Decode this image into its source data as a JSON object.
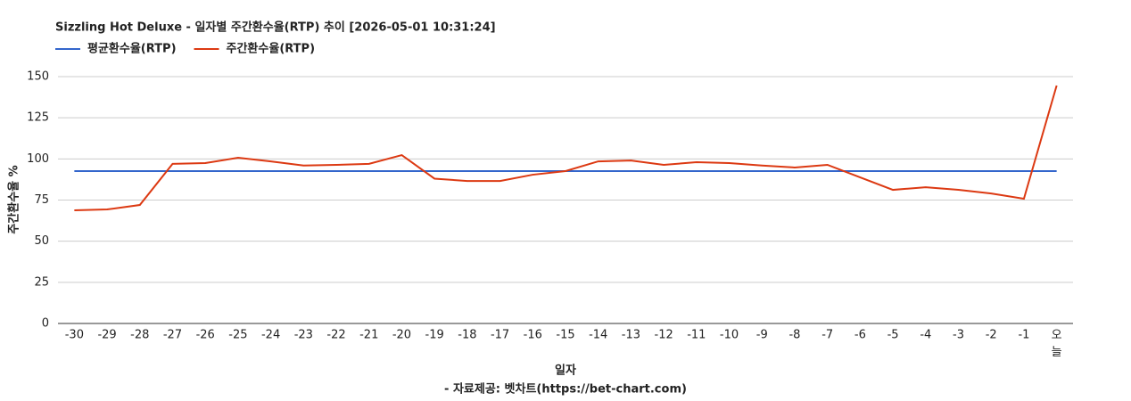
{
  "chart_data": {
    "type": "line",
    "title": "Sizzling Hot Deluxe - 일자별 주간환수율(RTP) 추이 [2026-05-01 10:31:24]",
    "subtitle": "- 자료제공: 벳차트(https://bet-chart.com)",
    "x_label": "일자",
    "y_label": "주간환수율 %",
    "categories": [
      "-30",
      "-29",
      "-28",
      "-27",
      "-26",
      "-25",
      "-24",
      "-23",
      "-22",
      "-21",
      "-20",
      "-19",
      "-18",
      "-17",
      "-16",
      "-15",
      "-14",
      "-13",
      "-12",
      "-11",
      "-10",
      "-9",
      "-8",
      "-7",
      "-6",
      "-5",
      "-4",
      "-3",
      "-2",
      "-1",
      "오늘"
    ],
    "series": [
      {
        "name": "평균환수율(RTP)",
        "color": "#3366cc",
        "values": [
          92.6,
          92.6,
          92.6,
          92.6,
          92.6,
          92.6,
          92.6,
          92.6,
          92.6,
          92.6,
          92.6,
          92.6,
          92.6,
          92.6,
          92.6,
          92.6,
          92.6,
          92.6,
          92.6,
          92.6,
          92.6,
          92.6,
          92.6,
          92.6,
          92.6,
          92.6,
          92.6,
          92.6,
          92.6,
          92.6,
          92.6
        ]
      },
      {
        "name": "주간환수율(RTP)",
        "color": "#dc3912",
        "values": [
          68.8,
          69.3,
          72,
          97,
          97.5,
          100.7,
          98.5,
          96,
          96.4,
          97,
          102.3,
          88,
          86.6,
          86.6,
          90.4,
          92.6,
          98.5,
          99,
          96.4,
          98,
          97.5,
          96,
          94.8,
          96.4,
          88.8,
          81.2,
          82.8,
          81.2,
          79,
          75.8,
          144.6
        ]
      }
    ],
    "ylim": [
      0,
      150
    ],
    "yticks": [
      0,
      25,
      50,
      75,
      100,
      125,
      150
    ],
    "grid": true
  }
}
